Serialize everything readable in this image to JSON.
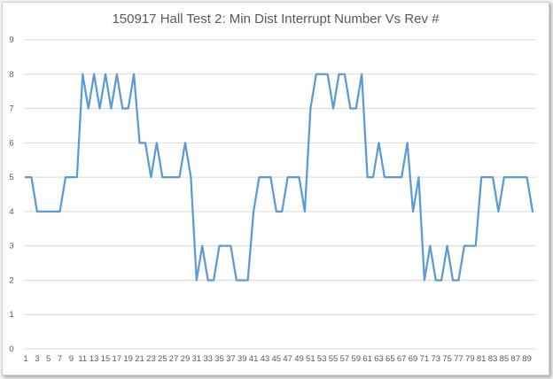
{
  "chart_data": {
    "type": "line",
    "title": "150917 Hall Test 2: Min Dist Interrupt Number Vs Rev #",
    "xlabel": "",
    "ylabel": "",
    "ylim": [
      0,
      9
    ],
    "yticks": [
      0,
      1,
      2,
      3,
      4,
      5,
      6,
      7,
      8,
      9
    ],
    "grid": true,
    "legend": "none",
    "line_color": "#5b9bd5",
    "x": [
      1,
      2,
      3,
      4,
      5,
      6,
      7,
      8,
      9,
      10,
      11,
      12,
      13,
      14,
      15,
      16,
      17,
      18,
      19,
      20,
      21,
      22,
      23,
      24,
      25,
      26,
      27,
      28,
      29,
      30,
      31,
      32,
      33,
      34,
      35,
      36,
      37,
      38,
      39,
      40,
      41,
      42,
      43,
      44,
      45,
      46,
      47,
      48,
      49,
      50,
      51,
      52,
      53,
      54,
      55,
      56,
      57,
      58,
      59,
      60,
      61,
      62,
      63,
      64,
      65,
      66,
      67,
      68,
      69,
      70,
      71,
      72,
      73,
      74,
      75,
      76,
      77,
      78,
      79,
      80,
      81,
      82,
      83,
      84,
      85,
      86,
      87,
      88,
      89,
      90
    ],
    "xtick_labels": [
      "1",
      "3",
      "5",
      "7",
      "9",
      "11",
      "13",
      "15",
      "17",
      "19",
      "21",
      "23",
      "25",
      "27",
      "29",
      "31",
      "33",
      "35",
      "37",
      "39",
      "41",
      "43",
      "45",
      "47",
      "49",
      "51",
      "53",
      "55",
      "57",
      "59",
      "61",
      "63",
      "65",
      "67",
      "69",
      "71",
      "73",
      "75",
      "77",
      "79",
      "81",
      "83",
      "85",
      "87",
      "89"
    ],
    "series": [
      {
        "values": [
          5,
          5,
          4,
          4,
          4,
          4,
          4,
          5,
          5,
          5,
          8,
          7,
          8,
          7,
          8,
          7,
          8,
          7,
          7,
          8,
          6,
          6,
          5,
          6,
          5,
          5,
          5,
          5,
          6,
          5,
          2,
          3,
          2,
          2,
          3,
          3,
          3,
          2,
          2,
          2,
          4,
          5,
          5,
          5,
          4,
          4,
          5,
          5,
          5,
          4,
          7,
          8,
          8,
          8,
          7,
          8,
          8,
          7,
          7,
          8,
          5,
          5,
          6,
          5,
          5,
          5,
          5,
          6,
          4,
          5,
          2,
          3,
          2,
          2,
          3,
          2,
          2,
          3,
          3,
          3,
          5,
          5,
          5,
          4,
          5,
          5,
          5,
          5,
          5,
          4
        ]
      }
    ]
  }
}
